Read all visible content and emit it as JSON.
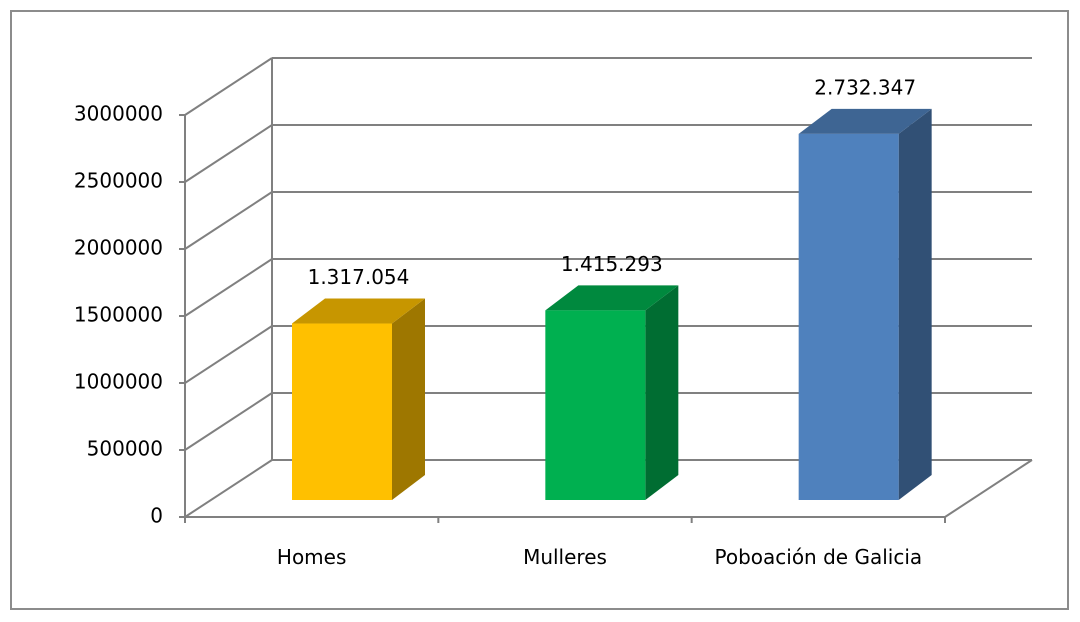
{
  "chart_data": {
    "type": "bar3d",
    "categories": [
      "Homes",
      "Mulleres",
      "Poboación de Galicia"
    ],
    "values": [
      1317054,
      1415293,
      2732347
    ],
    "value_labels": [
      "1.317.054",
      "1.415.293",
      "2.732.347"
    ],
    "colors": [
      "#ffc000",
      "#00b050",
      "#4f81bd"
    ],
    "ylim": [
      0,
      3000000
    ],
    "yticks": [
      0,
      500000,
      1000000,
      1500000,
      2000000,
      2500000,
      3000000
    ],
    "grid": true
  }
}
